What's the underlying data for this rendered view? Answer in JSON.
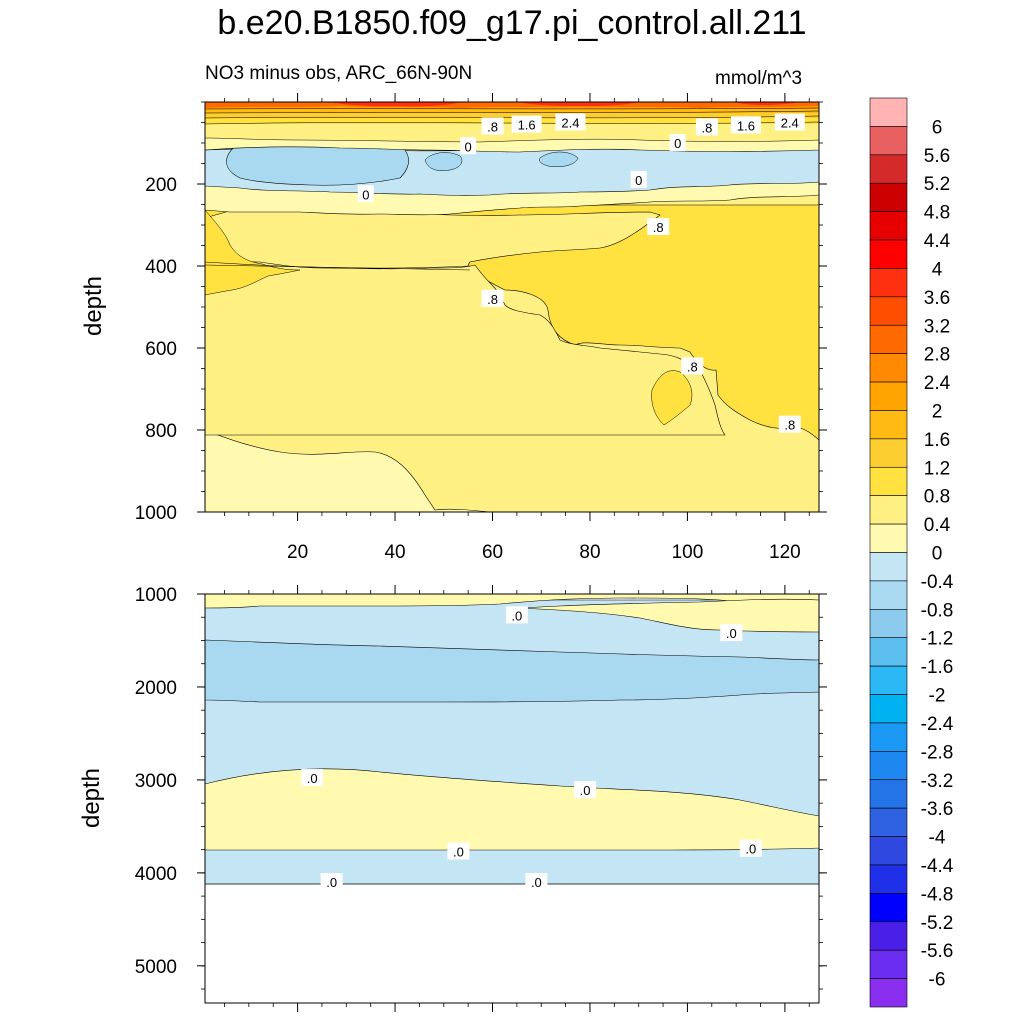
{
  "chart_data": {
    "type": "heatmap",
    "title": "b.e20.B1850.f09_g17.pi_control.all.211",
    "subtitle": "NO3 minus obs, ARC_66N-90N",
    "units": "mmol/m^3",
    "xlim": [
      1,
      127
    ],
    "x_ticks": [
      20,
      40,
      60,
      80,
      100,
      120
    ],
    "upper_panel": {
      "ylabel": "depth",
      "ylim": [
        0,
        1000
      ],
      "y_ticks": [
        200,
        400,
        600,
        800,
        1000
      ],
      "contour_labels": [
        {
          "text": ".8",
          "x": 60,
          "y": 60
        },
        {
          "text": "1.6",
          "x": 67,
          "y": 55
        },
        {
          "text": "2.4",
          "x": 76,
          "y": 50
        },
        {
          "text": ".8",
          "x": 104,
          "y": 62
        },
        {
          "text": "1.6",
          "x": 112,
          "y": 57
        },
        {
          "text": "2.4",
          "x": 121,
          "y": 50
        },
        {
          "text": "0",
          "x": 55,
          "y": 108
        },
        {
          "text": "0",
          "x": 98,
          "y": 100
        },
        {
          "text": "0",
          "x": 90,
          "y": 190
        },
        {
          "text": "0",
          "x": 34,
          "y": 225
        },
        {
          "text": ".8",
          "x": 94,
          "y": 305
        },
        {
          "text": ".8",
          "x": 60,
          "y": 480
        },
        {
          "text": ".8",
          "x": 101,
          "y": 645
        },
        {
          "text": ".8",
          "x": 121,
          "y": 787
        }
      ]
    },
    "lower_panel": {
      "ylabel": "depth",
      "ylim": [
        1000,
        5400
      ],
      "y_ticks": [
        1000,
        2000,
        3000,
        4000,
        5000
      ],
      "contour_labels": [
        {
          "text": ".0",
          "x": 65,
          "y": 1230
        },
        {
          "text": ".0",
          "x": 109,
          "y": 1420
        },
        {
          "text": ".0",
          "x": 23,
          "y": 2980
        },
        {
          "text": ".0",
          "x": 79,
          "y": 3110
        },
        {
          "text": ".0",
          "x": 53,
          "y": 3770
        },
        {
          "text": ".0",
          "x": 113,
          "y": 3740
        },
        {
          "text": ".0",
          "x": 27,
          "y": 4100
        },
        {
          "text": ".0",
          "x": 69,
          "y": 4100
        }
      ]
    },
    "colorbar": {
      "levels": [
        "6",
        "5.6",
        "5.2",
        "4.8",
        "4.4",
        "4",
        "3.6",
        "3.2",
        "2.8",
        "2.4",
        "2",
        "1.6",
        "1.2",
        "0.8",
        "0.4",
        "0",
        "-0.4",
        "-0.8",
        "-1.2",
        "-1.6",
        "-2",
        "-2.4",
        "-2.8",
        "-3.2",
        "-3.6",
        "-4",
        "-4.4",
        "-4.8",
        "-5.2",
        "-5.6",
        "-6"
      ],
      "colors": [
        "#ffb3b3",
        "#e86060",
        "#d42a2a",
        "#cc0000",
        "#e60000",
        "#ff0000",
        "#ff3010",
        "#ff4e00",
        "#ff6a00",
        "#ff8a00",
        "#ffa400",
        "#ffba14",
        "#fcce30",
        "#ffe140",
        "#fff084",
        "#fffab0",
        "#c4e6f4",
        "#a9d9f0",
        "#8ccbee",
        "#5cbff0",
        "#2cb8f4",
        "#00b2f0",
        "#1a98f4",
        "#1e88f0",
        "#2474e8",
        "#2e62e0",
        "#2e48e0",
        "#2030e8",
        "#0000ff",
        "#4a20e8",
        "#6a2cee",
        "#8a2ef0"
      ]
    }
  }
}
